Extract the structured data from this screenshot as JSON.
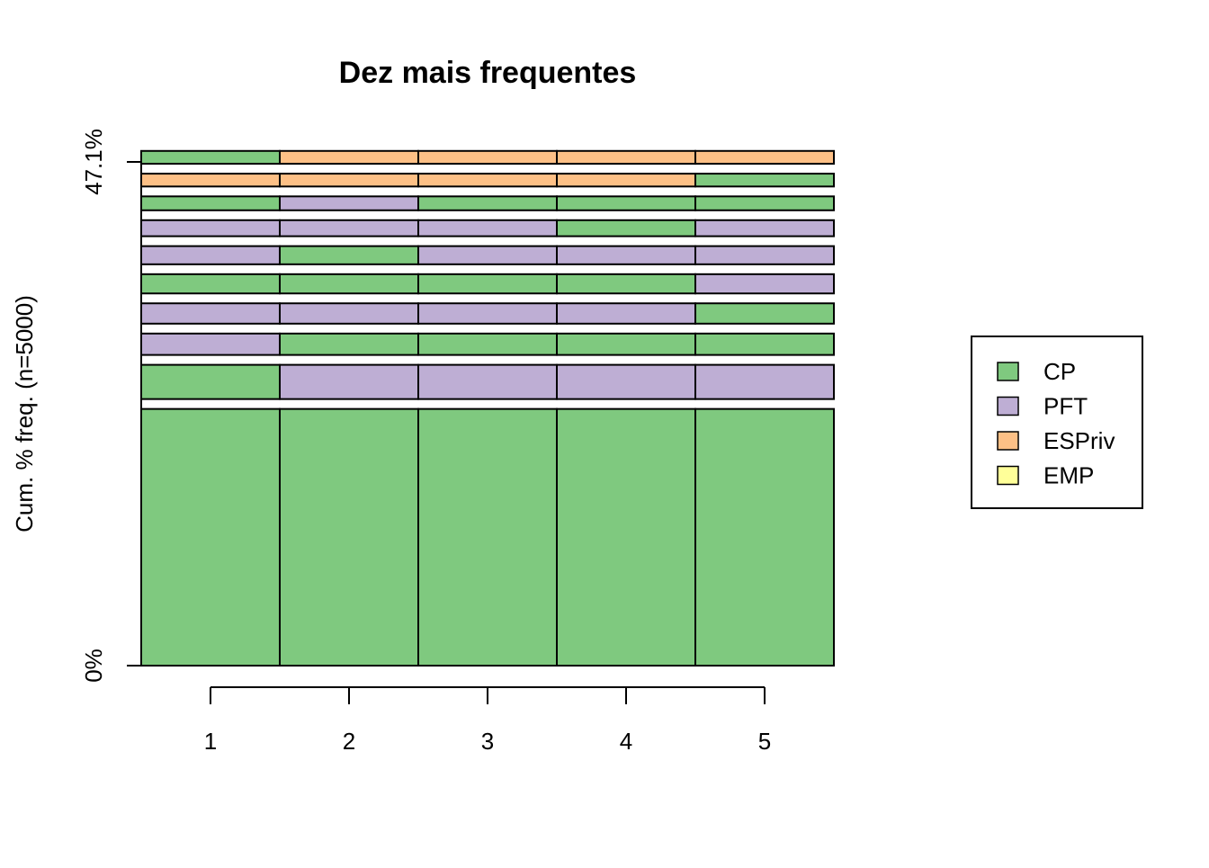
{
  "chart_data": {
    "type": "bar",
    "title": "Dez mais frequentes",
    "xlabel": "",
    "ylabel": "Cum. % freq. (n=5000)",
    "y_tick_labels": [
      "0%",
      "47.1%"
    ],
    "ylim": [
      0,
      47.1
    ],
    "positions": [
      "1",
      "2",
      "3",
      "4",
      "5"
    ],
    "legend": {
      "placement": "right",
      "entries": [
        {
          "label": "CP",
          "color": "#7FC97F"
        },
        {
          "label": "PFT",
          "color": "#BEAED4"
        },
        {
          "label": "ESPriv",
          "color": "#FDC086"
        },
        {
          "label": "EMP",
          "color": "#FFFF99"
        }
      ]
    },
    "sequences": [
      {
        "freq_pct": 24.0,
        "states": [
          "CP",
          "CP",
          "CP",
          "CP",
          "CP"
        ]
      },
      {
        "freq_pct": 3.2,
        "states": [
          "CP",
          "PFT",
          "PFT",
          "PFT",
          "PFT"
        ]
      },
      {
        "freq_pct": 2.0,
        "states": [
          "PFT",
          "CP",
          "CP",
          "CP",
          "CP"
        ]
      },
      {
        "freq_pct": 1.9,
        "states": [
          "PFT",
          "PFT",
          "PFT",
          "PFT",
          "CP"
        ]
      },
      {
        "freq_pct": 1.8,
        "states": [
          "CP",
          "CP",
          "CP",
          "CP",
          "PFT"
        ]
      },
      {
        "freq_pct": 1.7,
        "states": [
          "PFT",
          "CP",
          "PFT",
          "PFT",
          "PFT"
        ]
      },
      {
        "freq_pct": 1.5,
        "states": [
          "PFT",
          "PFT",
          "PFT",
          "CP",
          "PFT"
        ]
      },
      {
        "freq_pct": 1.3,
        "states": [
          "CP",
          "PFT",
          "CP",
          "CP",
          "CP"
        ]
      },
      {
        "freq_pct": 1.2,
        "states": [
          "ESPriv",
          "ESPriv",
          "ESPriv",
          "ESPriv",
          "CP"
        ]
      },
      {
        "freq_pct": 1.2,
        "states": [
          "CP",
          "ESPriv",
          "ESPriv",
          "ESPriv",
          "ESPriv"
        ]
      }
    ],
    "grid": false
  }
}
